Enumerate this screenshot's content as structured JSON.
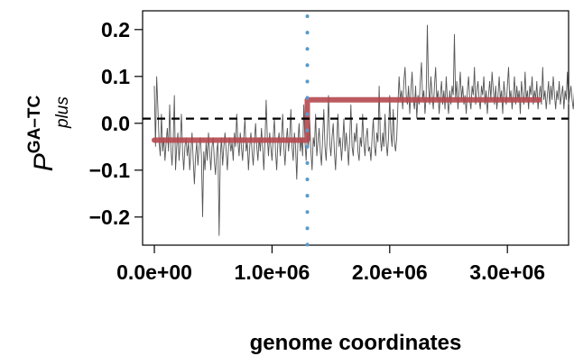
{
  "chart_data": {
    "type": "line",
    "title": "",
    "xlabel": "genome coordinates",
    "ylabel": {
      "main": "P",
      "superscript": "GA–TC",
      "subscript": "plus"
    },
    "xlim": [
      -100000,
      3520000
    ],
    "ylim": [
      -0.26,
      0.24
    ],
    "x_ticks": [
      {
        "value": 0,
        "label": "0.0e+00"
      },
      {
        "value": 1000000,
        "label": "1.0e+06"
      },
      {
        "value": 2000000,
        "label": "2.0e+06"
      },
      {
        "value": 3000000,
        "label": "3.0e+06"
      }
    ],
    "y_ticks": [
      {
        "value": -0.2,
        "label": "−0.2"
      },
      {
        "value": -0.1,
        "label": "−0.1"
      },
      {
        "value": 0.0,
        "label": "0.0"
      },
      {
        "value": 0.1,
        "label": "0.1"
      },
      {
        "value": 0.2,
        "label": "0.2"
      }
    ],
    "grid": false,
    "noisy_series": {
      "color": "#555555",
      "x_start": 0,
      "x_step": 10000,
      "y": [
        0.08,
        -0.05,
        0.1,
        0.03,
        -0.04,
        -0.07,
        0.02,
        -0.06,
        -0.03,
        -0.08,
        -0.04,
        -0.01,
        -0.06,
        0.04,
        -0.05,
        -0.09,
        -0.04,
        0.06,
        -0.1,
        -0.05,
        -0.02,
        -0.08,
        -0.04,
        0.02,
        -0.06,
        -0.1,
        -0.05,
        -0.03,
        -0.07,
        -0.04,
        -0.1,
        -0.06,
        -0.02,
        -0.08,
        -0.13,
        -0.07,
        -0.04,
        -0.09,
        -0.05,
        -0.03,
        -0.07,
        -0.2,
        -0.06,
        -0.1,
        -0.04,
        -0.08,
        -0.02,
        -0.06,
        -0.1,
        -0.05,
        -0.03,
        -0.08,
        -0.11,
        -0.06,
        -0.04,
        -0.24,
        -0.07,
        -0.03,
        -0.09,
        -0.05,
        -0.02,
        -0.06,
        -0.1,
        -0.05,
        -0.03,
        -0.06,
        -0.04,
        -0.08,
        -0.02,
        -0.05,
        0.02,
        -0.04,
        -0.07,
        -0.02,
        -0.05,
        -0.08,
        -0.03,
        0.01,
        -0.06,
        -0.04,
        -0.1,
        -0.05,
        -0.02,
        -0.06,
        -0.09,
        -0.04,
        0.0,
        -0.05,
        -0.08,
        -0.03,
        -0.06,
        -0.01,
        -0.05,
        -0.1,
        -0.04,
        0.05,
        -0.03,
        -0.07,
        -0.02,
        -0.05,
        -0.08,
        -0.03,
        0.01,
        -0.06,
        -0.1,
        -0.04,
        -0.02,
        -0.07,
        -0.03,
        0.02,
        -0.05,
        -0.09,
        -0.04,
        -0.01,
        -0.06,
        -0.03,
        0.03,
        -0.05,
        -0.08,
        -0.02,
        -0.05,
        -0.12,
        -0.04,
        0.0,
        -0.06,
        -0.03,
        -0.07,
        0.04,
        -0.04,
        -0.08,
        -0.02,
        -0.05,
        0.01,
        -0.06,
        -0.1,
        -0.03,
        -0.05,
        0.02,
        -0.07,
        -0.04,
        -0.01,
        -0.06,
        -0.09,
        -0.03,
        0.03,
        -0.05,
        -0.08,
        -0.02,
        0.06,
        -0.04,
        -0.07,
        -0.03,
        0.0,
        -0.06,
        -0.1,
        -0.04,
        0.02,
        -0.05,
        -0.03,
        -0.08,
        -0.04,
        0.01,
        -0.06,
        -0.02,
        -0.05,
        -0.09,
        -0.03,
        0.04,
        -0.05,
        -0.07,
        -0.02,
        -0.04,
        0.0,
        -0.06,
        -0.08,
        -0.03,
        -0.05,
        0.02,
        -0.04,
        -0.07,
        -0.03,
        -0.01,
        -0.06,
        -0.05,
        -0.08,
        -0.03,
        0.01,
        -0.05,
        -0.07,
        -0.02,
        -0.04,
        0.08,
        -0.03,
        -0.06,
        -0.02,
        -0.05,
        0.02,
        -0.04,
        -0.07,
        -0.03,
        0.06,
        -0.02,
        -0.05,
        0.03,
        -0.04,
        -0.06,
        -0.03,
        0.04,
        0.1,
        0.05,
        0.07,
        0.03,
        0.09,
        0.12,
        0.06,
        0.04,
        0.08,
        0.02,
        0.07,
        0.11,
        0.05,
        0.03,
        0.08,
        0.01,
        0.06,
        0.04,
        0.09,
        0.13,
        0.05,
        0.07,
        0.02,
        0.06,
        0.21,
        0.08,
        0.04,
        0.1,
        0.06,
        0.03,
        0.08,
        0.12,
        0.05,
        0.07,
        0.02,
        0.06,
        0.09,
        0.04,
        0.07,
        0.03,
        0.1,
        0.05,
        0.02,
        0.07,
        0.04,
        0.08,
        0.06,
        0.19,
        0.05,
        0.09,
        0.03,
        0.07,
        0.11,
        0.05,
        0.08,
        0.04,
        0.06,
        0.02,
        0.07,
        0.1,
        0.05,
        0.03,
        0.08,
        0.06,
        0.12,
        0.04,
        0.07,
        0.09,
        0.05,
        0.03,
        0.08,
        0.06,
        0.1,
        0.04,
        0.07,
        0.02,
        0.06,
        0.09,
        0.05,
        0.11,
        0.07,
        0.04,
        0.08,
        0.03,
        0.06,
        0.1,
        0.05,
        0.07,
        0.02,
        0.09,
        0.06,
        0.04,
        0.08,
        0.12,
        0.05,
        0.07,
        0.03,
        0.06,
        0.1,
        0.04,
        0.08,
        0.05,
        0.07,
        0.02,
        0.09,
        0.06,
        0.04,
        0.11,
        0.05,
        0.07,
        0.03,
        0.08,
        0.06,
        0.1,
        0.04,
        0.07,
        0.05,
        0.09,
        0.03,
        0.06,
        0.08,
        0.04,
        0.12,
        0.05,
        0.07,
        0.03,
        0.06,
        0.09,
        0.04,
        0.08,
        0.05,
        0.1,
        0.06,
        0.03,
        0.07,
        0.05,
        0.09,
        0.04,
        0.06,
        0.08,
        0.03,
        0.07,
        0.05,
        0.11,
        0.04,
        0.06,
        0.08,
        0.05,
        0.03,
        0.07,
        0.09,
        0.04,
        0.06,
        0.05
      ]
    },
    "step_series": {
      "color": "#b5484f",
      "segments": [
        {
          "x_start": 0,
          "x_end": 1300000,
          "y": -0.036
        },
        {
          "x_start": 1300000,
          "x_end": 3270000,
          "y": 0.05
        }
      ]
    },
    "hline": {
      "y": 0.01,
      "style": "dashed",
      "color": "#000000"
    },
    "vline": {
      "x": 1300000,
      "style": "dotted",
      "color": "#5a9ac8"
    }
  }
}
